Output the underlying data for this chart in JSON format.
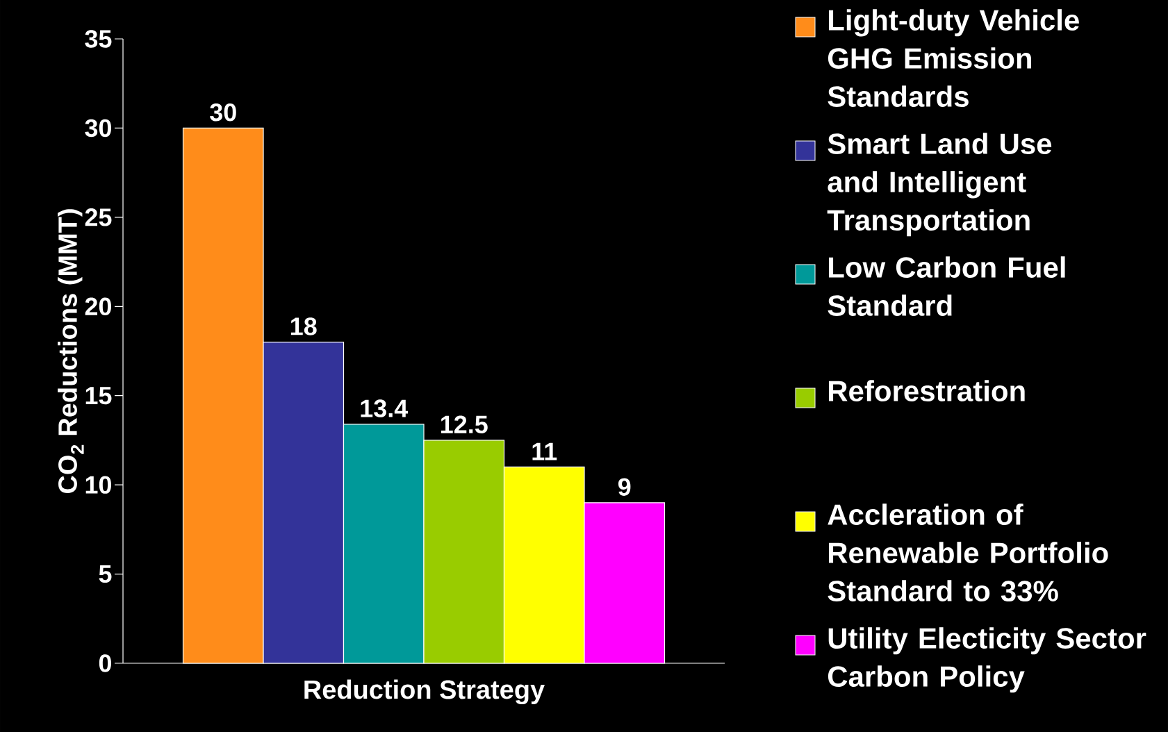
{
  "chart_data": {
    "type": "bar",
    "xlabel": "Reduction Strategy",
    "ylabel": "CO$_{2}$ Reductions (MMT)",
    "categories": [
      null
    ],
    "series": [
      {
        "name": "Light-duty Vehicle GHG Emission Standards",
        "color": "#ff8c1a",
        "values": [
          30
        ]
      },
      {
        "name": "Smart Land Use and Intelligent Transportation",
        "color": "#333399",
        "values": [
          18
        ]
      },
      {
        "name": "Low Carbon Fuel Standard",
        "color": "#009999",
        "values": [
          13.4
        ]
      },
      {
        "name": "Reforestration",
        "color": "#99cc00",
        "values": [
          12.5
        ]
      },
      {
        "name": "Accleration of Renewable Portfolio Standard to 33%",
        "color": "#ffff00",
        "values": [
          11
        ]
      },
      {
        "name": "Utility Electicity Sector Carbon Policy",
        "color": "#ff00ff",
        "values": [
          9
        ]
      }
    ],
    "ylim": [
      0,
      35
    ],
    "yticks": [
      0,
      5,
      10,
      15,
      20,
      25,
      30,
      35
    ],
    "data_labels": true,
    "legend": "right",
    "grid": false
  }
}
